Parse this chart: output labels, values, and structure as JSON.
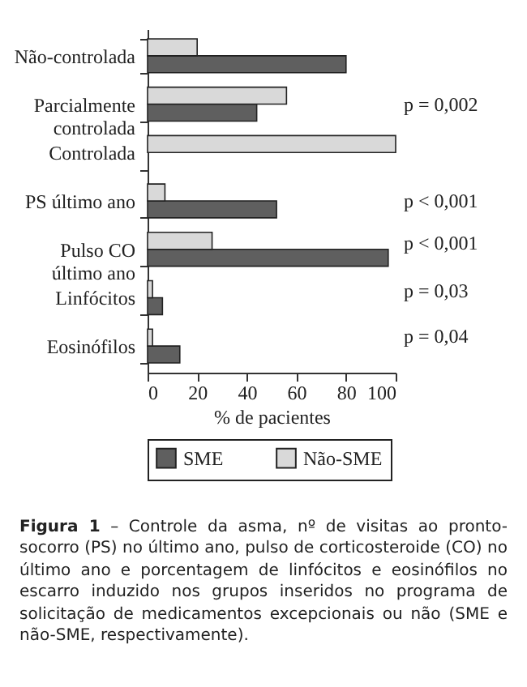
{
  "chart_data": {
    "type": "bar",
    "orientation": "horizontal",
    "categories": [
      "Não-controlada",
      "Parcialmente controlada",
      "Controlada",
      "PS último ano",
      "Pulso CO último ano",
      "Linfócitos",
      "Eosinófilos"
    ],
    "series": [
      {
        "name": "SME",
        "color": "#5f5f5f",
        "values": [
          80,
          44,
          0,
          52,
          97,
          6,
          13
        ]
      },
      {
        "name": "Não-SME",
        "color": "#d9d9d9",
        "values": [
          20,
          56,
          100,
          7,
          26,
          2,
          2
        ]
      }
    ],
    "xlabel": "% de pacientes",
    "xlim": [
      0,
      100
    ],
    "xticks": [
      0,
      20,
      40,
      60,
      80,
      100
    ],
    "legend": "bottom",
    "annotations": [
      "p = 0,002",
      "p < 0,001",
      "p < 0,001",
      "p = 0,03",
      "p = 0,04",
      "Figura 1 – Controle da asma, nº de visitas ao pronto-socorro (PS) no último ano, pulso de corticosteroide (CO) no último ano e porcentagem de linfócitos e eosinófilos no escarro induzido nos grupos inseridos no programa de solicitação de medicamentos excepcionais ou não (SME e não-SME, respectivamente)."
    ]
  }
}
